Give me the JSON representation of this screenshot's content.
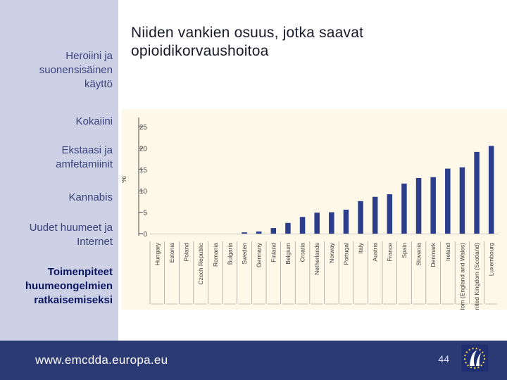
{
  "sidebar": {
    "items": [
      {
        "label_lines": [
          "Heroiini ja",
          "suonensisäinen",
          "käyttö"
        ]
      },
      {
        "label_lines": [
          "Kokaiini"
        ]
      },
      {
        "label_lines": [
          "Ekstaasi ja",
          "amfetamiinit"
        ]
      },
      {
        "label_lines": [
          "Kannabis"
        ]
      },
      {
        "label_lines": [
          "Uudet huumeet ja",
          "Internet"
        ]
      },
      {
        "label_lines": [
          "Toimenpiteet",
          "huumeongelmien",
          "ratkaisemiseksi"
        ]
      }
    ]
  },
  "slide": {
    "title_lines": [
      "Niiden vankien osuus, jotka saavat",
      "opioidikorvaushoitoa"
    ]
  },
  "footer": {
    "url": "www.emcdda.europa.eu",
    "page_number": "44"
  },
  "colors": {
    "bar": "#2c3d8c",
    "sidebar_bg": "#ccd1e6",
    "footer_bg": "#2b3a73",
    "chart_bg": "#fdf8e7"
  },
  "logo": {
    "icon": "emcdda-stars-logo"
  },
  "chart_data": {
    "type": "bar",
    "title": "",
    "xlabel": "",
    "ylabel": "%",
    "ylim": [
      0,
      25
    ],
    "yticks": [
      0,
      5,
      10,
      15,
      20,
      25
    ],
    "grid": false,
    "categories": [
      "Hungary",
      "Estonia",
      "Poland",
      "Czech Republic",
      "Romania",
      "Bulgaria",
      "Sweden",
      "Germany",
      "Finland",
      "Belgium",
      "Croatia",
      "Netherlands",
      "Norway",
      "Portugal",
      "Italy",
      "Austria",
      "France",
      "Spain",
      "Slovenia",
      "Denmark",
      "Ireland",
      "United Kingdom (England and Wales)",
      "United Kingdom (Scotland)",
      "Luxembourg"
    ],
    "values": [
      0,
      0,
      0,
      0,
      0,
      0,
      0.3,
      0.5,
      1.3,
      2.5,
      3.9,
      4.9,
      5.0,
      5.6,
      7.6,
      8.6,
      9.2,
      11.7,
      13.0,
      13.2,
      15.2,
      15.5,
      19.1,
      20.5
    ]
  }
}
